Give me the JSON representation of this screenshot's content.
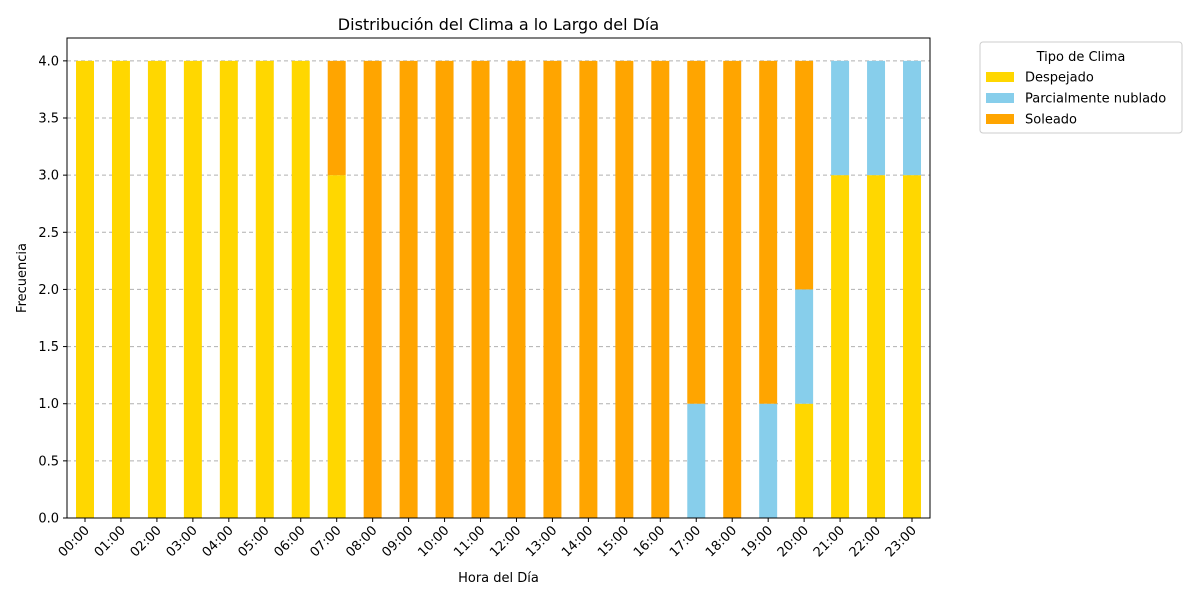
{
  "chart_data": {
    "type": "bar",
    "stacked": true,
    "title": "Distribución del Clima a lo Largo del Día",
    "xlabel": "Hora del Día",
    "ylabel": "Frecuencia",
    "ylim": [
      0,
      4.2
    ],
    "yticks": [
      "0.0",
      "0.5",
      "1.0",
      "1.5",
      "2.0",
      "2.5",
      "3.0",
      "3.5",
      "4.0"
    ],
    "ygrid": true,
    "categories": [
      "00:00",
      "01:00",
      "02:00",
      "03:00",
      "04:00",
      "05:00",
      "06:00",
      "07:00",
      "08:00",
      "09:00",
      "10:00",
      "11:00",
      "12:00",
      "13:00",
      "14:00",
      "15:00",
      "16:00",
      "17:00",
      "18:00",
      "19:00",
      "20:00",
      "21:00",
      "22:00",
      "23:00"
    ],
    "legend": {
      "title": "Tipo de Clima",
      "placement": "outside-top-right"
    },
    "series": [
      {
        "name": "Despejado",
        "color": "#FFD700",
        "values": [
          4,
          4,
          4,
          4,
          4,
          4,
          4,
          3,
          0,
          0,
          0,
          0,
          0,
          0,
          0,
          0,
          0,
          0,
          0,
          0,
          1,
          3,
          3,
          3
        ]
      },
      {
        "name": "Parcialmente nublado",
        "color": "#87CEEB",
        "values": [
          0,
          0,
          0,
          0,
          0,
          0,
          0,
          0,
          0,
          0,
          0,
          0,
          0,
          0,
          0,
          0,
          0,
          1,
          0,
          1,
          1,
          1,
          1,
          1
        ]
      },
      {
        "name": "Soleado",
        "color": "#FFA500",
        "values": [
          0,
          0,
          0,
          0,
          0,
          0,
          0,
          1,
          4,
          4,
          4,
          4,
          4,
          4,
          4,
          4,
          4,
          3,
          4,
          3,
          2,
          0,
          0,
          0
        ]
      }
    ]
  }
}
